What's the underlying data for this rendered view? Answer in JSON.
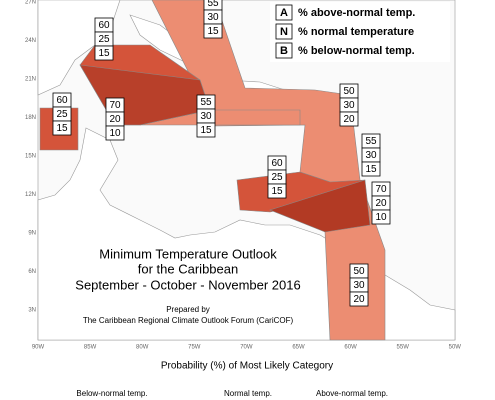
{
  "map": {
    "lat_labels": [
      "27N",
      "24N",
      "21N",
      "18N",
      "15N",
      "12N",
      "9N",
      "6N",
      "3N"
    ],
    "lon_labels": [
      "90W",
      "85W",
      "80W",
      "75W",
      "70W",
      "65W",
      "60W",
      "55W",
      "50W"
    ],
    "legend": [
      {
        "letter": "A",
        "text": "% above-normal temp."
      },
      {
        "letter": "N",
        "text": "% normal temperature"
      },
      {
        "letter": "B",
        "text": "% below-normal temp."
      }
    ],
    "title": [
      "Minimum Temperature Outlook",
      "for the Caribbean",
      "September - October - November 2016"
    ],
    "prepared": [
      "Prepared by",
      "The Caribbean Regional Climate Outlook Forum (CariCOF)"
    ],
    "regions": [
      {
        "values": [
          60,
          25,
          15
        ]
      },
      {
        "values": [
          60,
          25,
          15
        ]
      },
      {
        "values": [
          70,
          20,
          10
        ]
      },
      {
        "values": [
          55,
          30,
          15
        ]
      },
      {
        "values": [
          55,
          30,
          15
        ]
      },
      {
        "values": [
          50,
          30,
          20
        ]
      },
      {
        "values": [
          55,
          30,
          15
        ]
      },
      {
        "values": [
          60,
          25,
          15
        ]
      },
      {
        "values": [
          70,
          20,
          10
        ]
      },
      {
        "values": [
          50,
          30,
          20
        ]
      }
    ],
    "colorbar_title": "Probability (%) of Most Likely Category",
    "colorbar_labels": [
      "Below-normal temp.",
      "Normal temp.",
      "Above-normal temp."
    ]
  }
}
